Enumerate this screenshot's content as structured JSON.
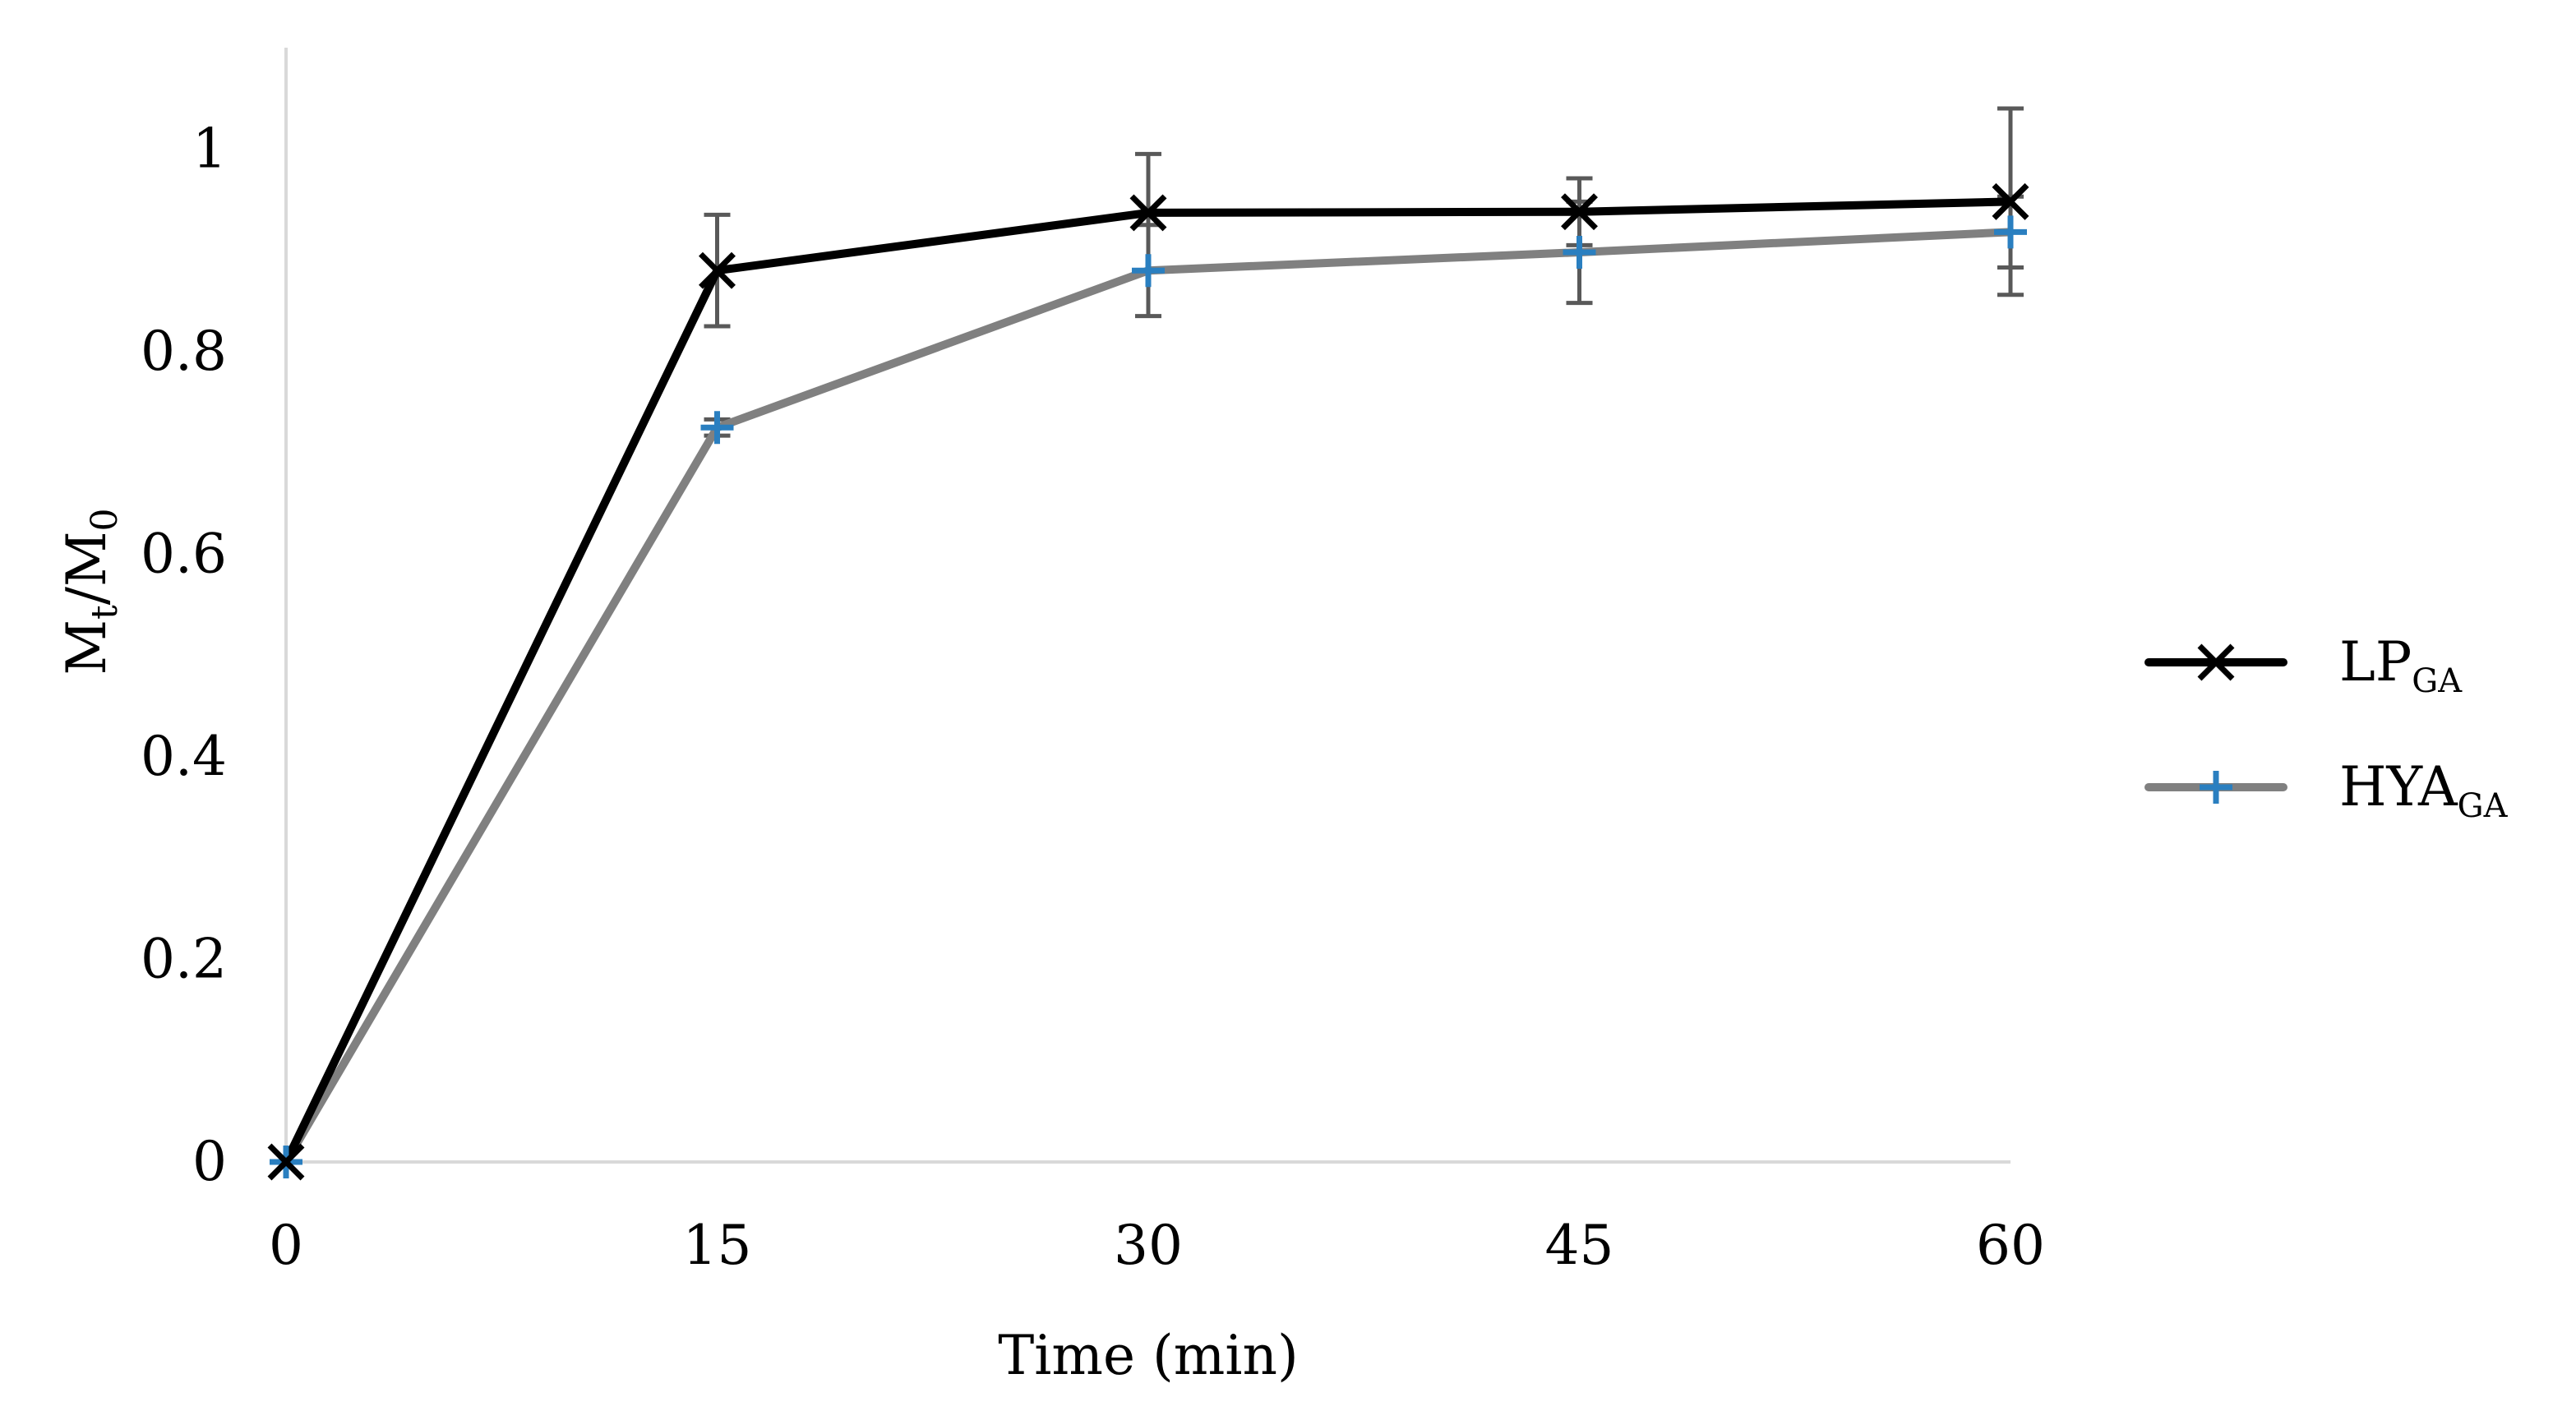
{
  "chart_data": {
    "type": "line",
    "title": "",
    "xlabel": "Time (min)",
    "ylabel": {
      "main": "M",
      "sub1": "t",
      "sep": "/M",
      "sub2": "0"
    },
    "x": [
      0,
      15,
      30,
      45,
      60
    ],
    "x_tick_labels": [
      "0",
      "15",
      "30",
      "45",
      "60"
    ],
    "xlim": [
      0,
      60
    ],
    "ylim": [
      0,
      1.1
    ],
    "y_ticks": [
      0,
      0.2,
      0.4,
      0.6,
      0.8,
      1
    ],
    "y_tick_labels": [
      "0",
      "0.2",
      "0.4",
      "0.6",
      "0.8",
      "1"
    ],
    "grid": false,
    "legend_position": "right",
    "series": [
      {
        "name": "LP",
        "name_sub": "GA",
        "values": [
          0,
          0.88,
          0.937,
          0.938,
          0.948
        ],
        "error": [
          0,
          0.055,
          0.058,
          0.033,
          0.092
        ],
        "marker": "x",
        "line_color": "#000000",
        "marker_color": "#000000"
      },
      {
        "name": "HYA",
        "name_sub": "GA",
        "values": [
          0,
          0.725,
          0.88,
          0.898,
          0.918
        ],
        "error": [
          0,
          0.008,
          0.045,
          0.05,
          0.035
        ],
        "marker": "+",
        "line_color": "#808080",
        "marker_color": "#2a7fc0"
      }
    ]
  }
}
